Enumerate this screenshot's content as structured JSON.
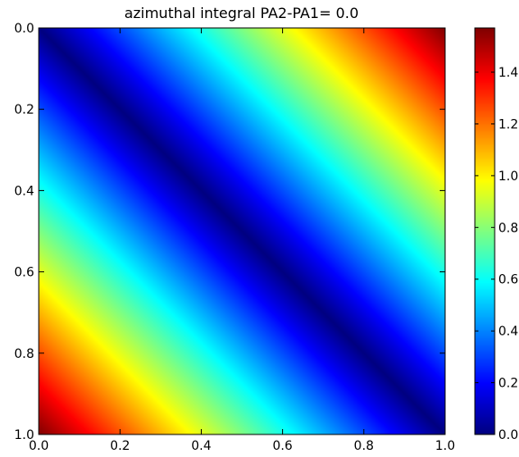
{
  "chart_data": {
    "type": "heatmap",
    "title": "azimuthal integral PA2-PA1= 0.0",
    "xlabel": "",
    "ylabel": "",
    "xlim": [
      0.0,
      1.0
    ],
    "ylim": [
      1.0,
      0.0
    ],
    "x_ticks": [
      "0.0",
      "0.2",
      "0.4",
      "0.6",
      "0.8",
      "1.0"
    ],
    "y_ticks": [
      "0.0",
      "0.2",
      "0.4",
      "0.6",
      "0.8",
      "1.0"
    ],
    "colormap": "jet",
    "value_model": "z = pi/2 * |x - y|",
    "z_range": [
      0.0,
      1.5708
    ],
    "grid": false,
    "colorbar": {
      "position": "right",
      "ticks": [
        "0.0",
        "0.2",
        "0.4",
        "0.6",
        "0.8",
        "1.0",
        "1.2",
        "1.4"
      ],
      "tick_values": [
        0.0,
        0.2,
        0.4,
        0.6,
        0.8,
        1.0,
        1.2,
        1.4
      ]
    }
  }
}
